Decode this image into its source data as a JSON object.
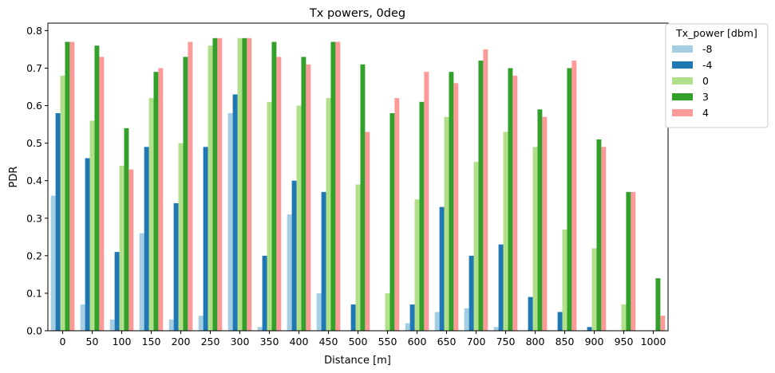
{
  "chart_data": {
    "type": "bar",
    "title": "Tx powers, 0deg",
    "xlabel": "Distance [m]",
    "ylabel": "PDR",
    "ylim": [
      0,
      0.82
    ],
    "yticks": [
      "0.0",
      "0.1",
      "0.2",
      "0.3",
      "0.4",
      "0.5",
      "0.6",
      "0.7",
      "0.8"
    ],
    "grid": false,
    "legend": {
      "title": "Tx_power [dbm]",
      "placement": "outside top-right"
    },
    "categories": [
      "0",
      "50",
      "100",
      "150",
      "200",
      "250",
      "300",
      "350",
      "400",
      "450",
      "500",
      "550",
      "600",
      "650",
      "700",
      "750",
      "800",
      "850",
      "900",
      "950",
      "1000"
    ],
    "series": [
      {
        "name": "-8",
        "color": "#a6cee3",
        "values": [
          0.36,
          0.07,
          0.03,
          0.26,
          0.03,
          0.04,
          0.58,
          0.01,
          0.31,
          0.1,
          0,
          0,
          0.02,
          0.05,
          0.06,
          0.01,
          0,
          0,
          0,
          0,
          0
        ]
      },
      {
        "name": "-4",
        "color": "#1f78b4",
        "values": [
          0.58,
          0.46,
          0.21,
          0.49,
          0.34,
          0.49,
          0.63,
          0.2,
          0.4,
          0.37,
          0.07,
          0,
          0.07,
          0.33,
          0.2,
          0.23,
          0.09,
          0.05,
          0.01,
          0,
          0
        ]
      },
      {
        "name": "0",
        "color": "#b2df8a",
        "values": [
          0.68,
          0.56,
          0.44,
          0.62,
          0.5,
          0.76,
          0.78,
          0.61,
          0.6,
          0.62,
          0.39,
          0.1,
          0.35,
          0.57,
          0.45,
          0.53,
          0.49,
          0.27,
          0.22,
          0.07,
          0
        ]
      },
      {
        "name": "3",
        "color": "#33a02c",
        "values": [
          0.77,
          0.76,
          0.54,
          0.69,
          0.73,
          0.78,
          0.78,
          0.77,
          0.73,
          0.77,
          0.71,
          0.58,
          0.61,
          0.69,
          0.72,
          0.7,
          0.59,
          0.7,
          0.51,
          0.37,
          0.14
        ]
      },
      {
        "name": "4",
        "color": "#fb9a99",
        "values": [
          0.77,
          0.73,
          0.43,
          0.7,
          0.77,
          0.78,
          0.78,
          0.73,
          0.71,
          0.77,
          0.53,
          0.62,
          0.69,
          0.66,
          0.75,
          0.68,
          0.57,
          0.72,
          0.49,
          0.37,
          0.04
        ]
      }
    ]
  }
}
